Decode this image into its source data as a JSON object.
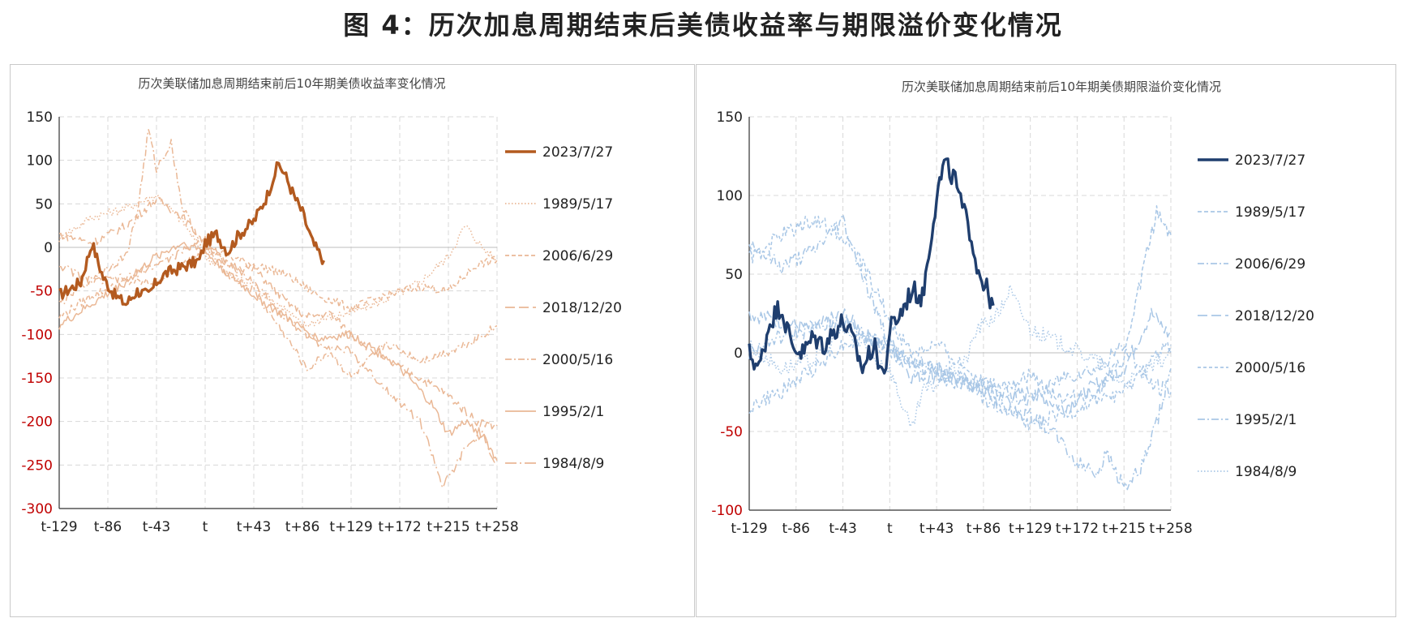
{
  "page_title": "图 4：历次加息周期结束后美债收益率与期限溢价变化情况",
  "colors": {
    "left_accent": "#b35a1f",
    "left_light": "#eab896",
    "right_accent": "#1f3e6e",
    "right_light": "#a9c7e6",
    "axis_label_red": "#c00000"
  },
  "chart_data": [
    {
      "type": "line",
      "title": "历次美联储加息周期结束前后10年期美债收益率变化情况",
      "xlabel": "",
      "ylabel": "",
      "x_ticks": [
        "t-129",
        "t-86",
        "t-43",
        "t",
        "t+43",
        "t+86",
        "t+129",
        "t+172",
        "t+215",
        "t+258"
      ],
      "x_tick_values": [
        -129,
        -86,
        -43,
        0,
        43,
        86,
        129,
        172,
        215,
        258
      ],
      "xlim": [
        -129,
        258
      ],
      "ylim": [
        -300,
        150
      ],
      "y_ticks": [
        150,
        100,
        50,
        0,
        -50,
        -100,
        -150,
        -200,
        -250,
        -300
      ],
      "grid": true,
      "legend_position": "right",
      "series": [
        {
          "name": "2023/7/27",
          "style": "solid-bold",
          "x": [
            -129,
            -110,
            -100,
            -90,
            -80,
            -70,
            -60,
            -50,
            -43,
            -35,
            -25,
            -15,
            -5,
            0,
            10,
            20,
            30,
            43,
            55,
            60,
            65,
            70,
            80,
            86,
            95,
            105
          ],
          "y": [
            -55,
            -40,
            5,
            -35,
            -55,
            -65,
            -50,
            -55,
            -40,
            -30,
            -25,
            -20,
            -15,
            5,
            15,
            -5,
            15,
            30,
            60,
            80,
            96,
            85,
            55,
            40,
            5,
            -15
          ]
        },
        {
          "name": "1989/5/17",
          "style": "dotted",
          "x": [
            -129,
            -100,
            -70,
            -43,
            -20,
            0,
            20,
            43,
            70,
            86,
            110,
            129,
            160,
            190,
            215,
            230,
            245,
            258
          ],
          "y": [
            10,
            35,
            45,
            60,
            30,
            -10,
            -30,
            -45,
            -70,
            -90,
            -80,
            -75,
            -60,
            -40,
            -10,
            25,
            0,
            -15
          ]
        },
        {
          "name": "2006/6/29",
          "style": "dashed",
          "x": [
            -129,
            -100,
            -70,
            -43,
            -20,
            0,
            20,
            43,
            70,
            100,
            129,
            160,
            190,
            215,
            240,
            258
          ],
          "y": [
            -80,
            -55,
            -40,
            -40,
            -20,
            0,
            -10,
            -20,
            -30,
            -55,
            -70,
            -55,
            -45,
            -50,
            -20,
            -15
          ]
        },
        {
          "name": "2018/12/20",
          "style": "long-dash",
          "x": [
            -129,
            -100,
            -70,
            -43,
            -20,
            0,
            20,
            43,
            70,
            90,
            110,
            129,
            160,
            190,
            215,
            240,
            258
          ],
          "y": [
            15,
            5,
            25,
            55,
            35,
            5,
            -20,
            -25,
            -60,
            -80,
            -75,
            -100,
            -130,
            -150,
            -170,
            -200,
            -205
          ]
        },
        {
          "name": "2000/5/16",
          "style": "dash-dot",
          "x": [
            -129,
            -100,
            -70,
            -60,
            -50,
            -43,
            -30,
            -20,
            0,
            20,
            43,
            70,
            90,
            110,
            129,
            160,
            190,
            215,
            240,
            258
          ],
          "y": [
            -65,
            -35,
            -10,
            40,
            135,
            90,
            120,
            45,
            0,
            -30,
            -50,
            -100,
            -140,
            -120,
            -150,
            -110,
            -130,
            -120,
            -105,
            -90
          ]
        },
        {
          "name": "1995/2/1",
          "style": "solid-thin",
          "x": [
            -129,
            -100,
            -70,
            -43,
            -20,
            0,
            20,
            43,
            70,
            100,
            129,
            160,
            180,
            200,
            215,
            230,
            245,
            258
          ],
          "y": [
            -90,
            -65,
            -40,
            -10,
            5,
            -5,
            -30,
            -55,
            -80,
            -105,
            -100,
            -125,
            -150,
            -180,
            -215,
            -200,
            -215,
            -245
          ]
        },
        {
          "name": "1984/8/9",
          "style": "long-dash-dot",
          "x": [
            -129,
            -100,
            -70,
            -43,
            -20,
            0,
            20,
            43,
            70,
            100,
            129,
            150,
            170,
            190,
            200,
            210,
            220,
            230,
            245,
            258
          ],
          "y": [
            -20,
            -40,
            -35,
            -20,
            -5,
            10,
            -20,
            -40,
            -80,
            -110,
            -120,
            -150,
            -175,
            -200,
            -235,
            -275,
            -255,
            -230,
            -215,
            -250
          ]
        }
      ]
    },
    {
      "type": "line",
      "title": "历次美联储加息周期结束前后10年期美债期限溢价变化情况",
      "xlabel": "",
      "ylabel": "",
      "x_ticks": [
        "t-129",
        "t-86",
        "t-43",
        "t",
        "t+43",
        "t+86",
        "t+129",
        "t+172",
        "t+215",
        "t+258"
      ],
      "x_tick_values": [
        -129,
        -86,
        -43,
        0,
        43,
        86,
        129,
        172,
        215,
        258
      ],
      "xlim": [
        -129,
        258
      ],
      "ylim": [
        -100,
        150
      ],
      "y_ticks": [
        150,
        100,
        50,
        0,
        -50,
        -100
      ],
      "grid": true,
      "legend_position": "right",
      "series": [
        {
          "name": "2023/7/27",
          "style": "solid-bold",
          "x": [
            -129,
            -120,
            -110,
            -100,
            -90,
            -80,
            -70,
            -60,
            -50,
            -43,
            -35,
            -25,
            -15,
            -5,
            0,
            10,
            20,
            30,
            43,
            50,
            55,
            60,
            65,
            70,
            75,
            80,
            86,
            95
          ],
          "y": [
            0,
            -10,
            20,
            30,
            5,
            0,
            10,
            5,
            15,
            20,
            10,
            -10,
            5,
            -15,
            15,
            25,
            40,
            35,
            100,
            120,
            115,
            110,
            95,
            85,
            75,
            55,
            45,
            30
          ]
        },
        {
          "name": "1989/5/17",
          "style": "dashed",
          "x": [
            -129,
            -100,
            -70,
            -43,
            -20,
            0,
            20,
            43,
            70,
            100,
            129,
            160,
            190,
            215,
            230,
            245,
            258
          ],
          "y": [
            -35,
            -25,
            -10,
            5,
            10,
            0,
            -5,
            -15,
            -20,
            -20,
            -15,
            -30,
            -25,
            -5,
            45,
            90,
            75
          ]
        },
        {
          "name": "2006/6/29",
          "style": "dash-dot",
          "x": [
            -129,
            -100,
            -70,
            -43,
            -20,
            0,
            20,
            43,
            70,
            100,
            129,
            160,
            190,
            215,
            240,
            258
          ],
          "y": [
            70,
            55,
            65,
            85,
            40,
            5,
            -10,
            -10,
            -15,
            -25,
            -30,
            -15,
            -10,
            5,
            -20,
            -25
          ]
        },
        {
          "name": "2018/12/20",
          "style": "long-dash",
          "x": [
            -129,
            -100,
            -70,
            -43,
            -20,
            0,
            20,
            43,
            70,
            100,
            129,
            160,
            190,
            215,
            240,
            258
          ],
          "y": [
            25,
            20,
            15,
            25,
            10,
            5,
            -15,
            -15,
            -20,
            -30,
            -25,
            -35,
            -20,
            -10,
            25,
            10
          ]
        },
        {
          "name": "2000/5/16",
          "style": "dashed-light",
          "x": [
            -129,
            -100,
            -70,
            -43,
            -20,
            0,
            20,
            43,
            70,
            100,
            129,
            160,
            190,
            215,
            240,
            258
          ],
          "y": [
            60,
            75,
            85,
            75,
            50,
            20,
            0,
            5,
            -10,
            -30,
            -45,
            -40,
            -30,
            -25,
            -5,
            5
          ]
        },
        {
          "name": "1995/2/1",
          "style": "dash-dot-light",
          "x": [
            -129,
            -100,
            -70,
            -43,
            -20,
            0,
            20,
            43,
            70,
            100,
            129,
            150,
            172,
            190,
            200,
            215,
            230,
            245,
            258
          ],
          "y": [
            0,
            10,
            15,
            20,
            10,
            5,
            -5,
            -10,
            -20,
            -35,
            -40,
            -50,
            -70,
            -75,
            -65,
            -85,
            -75,
            -45,
            -10
          ]
        },
        {
          "name": "1984/8/9",
          "style": "dotted",
          "x": [
            -129,
            -100,
            -70,
            -43,
            -20,
            0,
            10,
            20,
            30,
            43,
            60,
            70,
            80,
            90,
            100,
            110,
            129,
            160,
            190,
            215,
            240,
            258
          ],
          "y": [
            5,
            -10,
            -5,
            15,
            0,
            -10,
            -30,
            -50,
            -25,
            -20,
            -10,
            -5,
            15,
            20,
            25,
            40,
            15,
            5,
            -5,
            -20,
            -10,
            0
          ]
        }
      ]
    }
  ]
}
